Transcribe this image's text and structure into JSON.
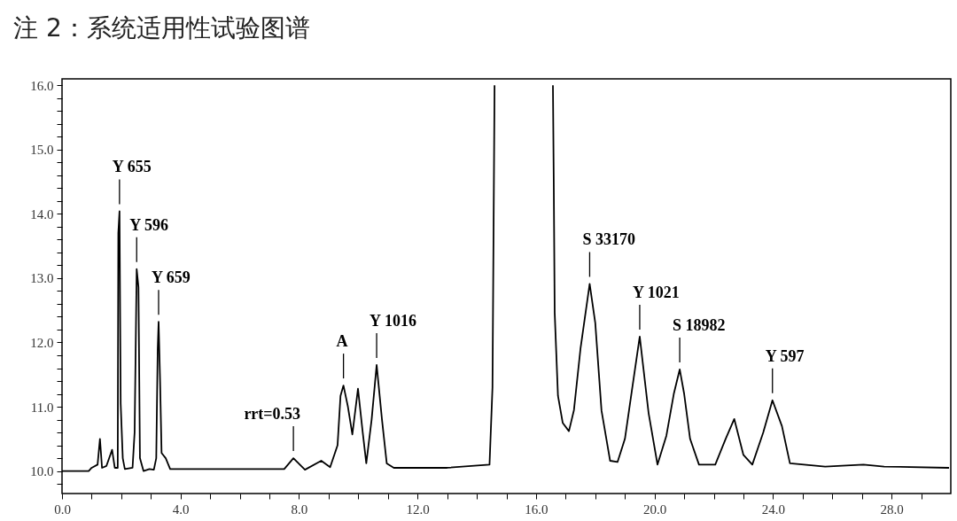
{
  "chart_data": {
    "type": "line",
    "title": "注 2：系统适用性试验图谱",
    "x": [
      0,
      0.9,
      1.0,
      1.2,
      1.28,
      1.35,
      1.5,
      1.69,
      1.78,
      1.88,
      1.9,
      1.94,
      1.98,
      2.05,
      2.12,
      2.38,
      2.45,
      2.52,
      2.58,
      2.63,
      2.75,
      2.95,
      3.1,
      3.18,
      3.23,
      3.26,
      3.31,
      3.36,
      3.5,
      3.65,
      5.0,
      6.5,
      7.5,
      7.81,
      8.2,
      8.75,
      9.05,
      9.3,
      9.4,
      9.5,
      9.65,
      9.8,
      9.99,
      10.15,
      10.27,
      10.45,
      10.62,
      10.8,
      10.96,
      11.2,
      13.0,
      14.43,
      14.53,
      14.6,
      15.6,
      16.57,
      16.6,
      16.63,
      16.74,
      16.9,
      17.11,
      17.28,
      17.5,
      17.81,
      18.0,
      18.21,
      18.5,
      18.75,
      19.0,
      19.25,
      19.5,
      19.8,
      20.1,
      20.4,
      20.65,
      20.85,
      21.0,
      21.2,
      21.5,
      22.05,
      22.4,
      22.69,
      23.0,
      23.3,
      23.67,
      23.98,
      24.3,
      24.57,
      25.76,
      27.05,
      27.75,
      29.94
    ],
    "series": [
      {
        "color": "#000000",
        "values": [
          10.0,
          10.0,
          10.05,
          10.1,
          10.5,
          10.05,
          10.08,
          10.33,
          10.05,
          10.05,
          13.7,
          14.04,
          11.05,
          10.2,
          10.03,
          10.05,
          10.6,
          13.14,
          12.86,
          10.2,
          10.0,
          10.03,
          10.02,
          10.2,
          11.9,
          12.32,
          11.4,
          10.28,
          10.2,
          10.03,
          10.03,
          10.03,
          10.03,
          10.2,
          10.02,
          10.16,
          10.06,
          10.4,
          11.17,
          11.33,
          11.0,
          10.57,
          11.28,
          10.6,
          10.12,
          10.8,
          11.65,
          10.8,
          10.12,
          10.05,
          10.05,
          10.1,
          11.3,
          16.0,
          null,
          16.0,
          14.38,
          12.46,
          11.17,
          10.75,
          10.62,
          10.95,
          11.9,
          12.91,
          12.3,
          10.94,
          10.16,
          10.14,
          10.5,
          11.3,
          12.09,
          10.9,
          10.1,
          10.55,
          11.2,
          11.58,
          11.2,
          10.5,
          10.1,
          10.1,
          10.5,
          10.81,
          10.25,
          10.1,
          10.6,
          11.1,
          10.7,
          10.12,
          10.07,
          10.1,
          10.07,
          10.05
        ]
      }
    ],
    "xlim": [
      0,
      30
    ],
    "ylim": [
      9.65,
      16.1
    ],
    "xticks": [
      {
        "value": 0,
        "label": "0.0"
      },
      {
        "value": 1,
        "label": null
      },
      {
        "value": 2,
        "label": null
      },
      {
        "value": 3,
        "label": null
      },
      {
        "value": 4,
        "label": "4.0"
      },
      {
        "value": 5,
        "label": null
      },
      {
        "value": 6,
        "label": null
      },
      {
        "value": 7,
        "label": null
      },
      {
        "value": 8,
        "label": "8.0"
      },
      {
        "value": 9,
        "label": null
      },
      {
        "value": 10,
        "label": null
      },
      {
        "value": 11,
        "label": null
      },
      {
        "value": 12,
        "label": "12.0"
      },
      {
        "value": 13,
        "label": null
      },
      {
        "value": 14,
        "label": null
      },
      {
        "value": 15,
        "label": null
      },
      {
        "value": 16,
        "label": "16.0"
      },
      {
        "value": 17,
        "label": null
      },
      {
        "value": 18,
        "label": null
      },
      {
        "value": 19,
        "label": null
      },
      {
        "value": 20,
        "label": "20.0"
      },
      {
        "value": 21,
        "label": null
      },
      {
        "value": 22,
        "label": null
      },
      {
        "value": 23,
        "label": null
      },
      {
        "value": 24,
        "label": "24.0"
      },
      {
        "value": 25,
        "label": null
      },
      {
        "value": 26,
        "label": null
      },
      {
        "value": 27,
        "label": null
      },
      {
        "value": 28,
        "label": "28.0"
      },
      {
        "value": 29,
        "label": null
      }
    ],
    "yticks": [
      {
        "value": 9.8,
        "label": null
      },
      {
        "value": 10,
        "label": "10.0"
      },
      {
        "value": 10.2,
        "label": null
      },
      {
        "value": 10.4,
        "label": null
      },
      {
        "value": 10.6,
        "label": null
      },
      {
        "value": 10.8,
        "label": null
      },
      {
        "value": 11,
        "label": "11.0"
      },
      {
        "value": 11.2,
        "label": null
      },
      {
        "value": 11.4,
        "label": null
      },
      {
        "value": 11.6,
        "label": null
      },
      {
        "value": 11.8,
        "label": null
      },
      {
        "value": 12,
        "label": "12.0"
      },
      {
        "value": 12.2,
        "label": null
      },
      {
        "value": 12.4,
        "label": null
      },
      {
        "value": 12.6,
        "label": null
      },
      {
        "value": 12.8,
        "label": null
      },
      {
        "value": 13,
        "label": "13.0"
      },
      {
        "value": 13.2,
        "label": null
      },
      {
        "value": 13.4,
        "label": null
      },
      {
        "value": 13.6,
        "label": null
      },
      {
        "value": 13.8,
        "label": null
      },
      {
        "value": 14,
        "label": "14.0"
      },
      {
        "value": 14.2,
        "label": null
      },
      {
        "value": 14.4,
        "label": null
      },
      {
        "value": 14.6,
        "label": null
      },
      {
        "value": 14.8,
        "label": null
      },
      {
        "value": 15,
        "label": "15.0"
      },
      {
        "value": 15.2,
        "label": null
      },
      {
        "value": 15.4,
        "label": null
      },
      {
        "value": 15.6,
        "label": null
      },
      {
        "value": 15.8,
        "label": null
      },
      {
        "value": 16,
        "label": "16.0"
      }
    ],
    "annotations": [
      {
        "text": "Y 655",
        "x": 1.94,
        "y": 14.04
      },
      {
        "text": "Y 596",
        "x": 2.52,
        "y": 13.14
      },
      {
        "text": "Y 659",
        "x": 3.26,
        "y": 12.32
      },
      {
        "text": "rrt=0.53",
        "x": 7.81,
        "y": 10.2
      },
      {
        "text": "A",
        "x": 9.5,
        "y": 11.33
      },
      {
        "text": "Y 1016",
        "x": 10.62,
        "y": 11.65
      },
      {
        "text": "S 33170",
        "x": 17.81,
        "y": 12.91
      },
      {
        "text": "Y 1021",
        "x": 19.5,
        "y": 12.09
      },
      {
        "text": "S 18982",
        "x": 20.85,
        "y": 11.58
      },
      {
        "text": "Y 597",
        "x": 23.98,
        "y": 11.1
      }
    ]
  }
}
